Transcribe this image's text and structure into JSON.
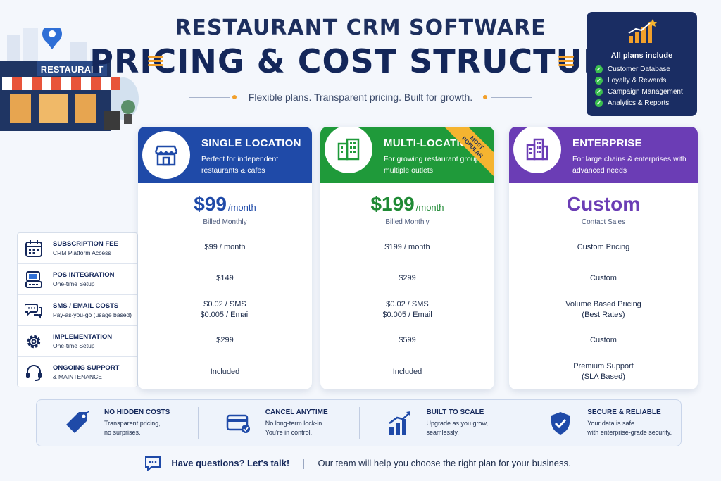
{
  "header": {
    "title_line1": "RESTAURANT CRM SOFTWARE",
    "title_line2": "PRICING & COST STRUCTURE",
    "tagline": "Flexible plans. Transparent pricing. Built for growth."
  },
  "illustration": {
    "sign": "RESTAURANT"
  },
  "includes": {
    "title": "All plans include",
    "items": [
      "Customer Database",
      "Loyalty & Rewards",
      "Campaign Management",
      "Analytics & Reports"
    ]
  },
  "rows": [
    {
      "icon": "calendar-icon",
      "label": "SUBSCRIPTION FEE",
      "sub": "CRM Platform Access"
    },
    {
      "icon": "pos-terminal-icon",
      "label": "POS INTEGRATION",
      "sub": "One-time Setup"
    },
    {
      "icon": "chat-bubbles-icon",
      "label": "SMS / EMAIL COSTS",
      "sub": "Pay-as-you-go (usage based)"
    },
    {
      "icon": "gear-icon",
      "label": "IMPLEMENTATION",
      "sub": "One-time Setup"
    },
    {
      "icon": "headset-icon",
      "label": "ONGOING SUPPORT",
      "sub": "& MAINTENANCE"
    }
  ],
  "plans": [
    {
      "name": "SINGLE LOCATION",
      "desc": "Perfect for independent restaurants & cafes",
      "price": "$99",
      "period": "/month",
      "billing": "Billed Monthly",
      "color": "#1f4aa8",
      "cells": [
        "$99 / month",
        "$149",
        "$0.02 / SMS\n$0.005 / Email",
        "$299",
        "Included"
      ]
    },
    {
      "name": "MULTI-LOCATION",
      "desc": "For growing restaurant groups & multiple outlets",
      "price": "$199",
      "period": "/month",
      "billing": "Billed Monthly",
      "color": "#1f9a3a",
      "badge": "MOST\nPOPULAR",
      "cells": [
        "$199 / month",
        "$299",
        "$0.02 / SMS\n$0.005 / Email",
        "$599",
        "Included"
      ]
    },
    {
      "name": "ENTERPRISE",
      "desc": "For large chains & enterprises with advanced needs",
      "price": "Custom",
      "period": "",
      "billing": "Contact Sales",
      "color": "#6b3db5",
      "cells": [
        "Custom Pricing",
        "Custom",
        "Volume Based Pricing\n(Best Rates)",
        "Custom",
        "Premium Support\n(SLA Based)"
      ]
    }
  ],
  "features": [
    {
      "icon": "price-tag-icon",
      "title": "NO HIDDEN COSTS",
      "sub": "Transparent pricing,\nno surprises."
    },
    {
      "icon": "credit-card-icon",
      "title": "CANCEL ANYTIME",
      "sub": "No long-term lock-in.\nYou're in control."
    },
    {
      "icon": "growth-chart-icon",
      "title": "BUILT TO SCALE",
      "sub": "Upgrade as you grow,\nseamlessly."
    },
    {
      "icon": "shield-check-icon",
      "title": "SECURE & RELIABLE",
      "sub": "Your data is safe\nwith enterprise-grade security."
    }
  ],
  "footer": {
    "question": "Have questions? Let's talk!",
    "message": "Our team will help you choose the right plan for your business."
  }
}
